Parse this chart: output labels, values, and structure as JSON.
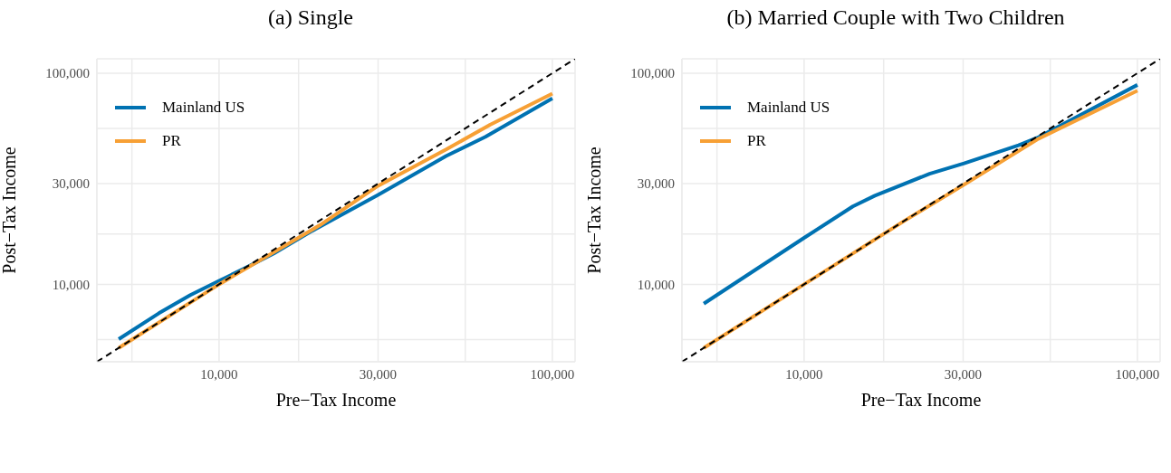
{
  "chart_data": [
    {
      "type": "line",
      "title": "(a) Single",
      "xlabel": "Pre−Tax Income",
      "ylabel": "Post−Tax Income",
      "log": "xy",
      "grid": true,
      "legend": "top left",
      "xlim": [
        4300,
        117000
      ],
      "ylim": [
        4300,
        117000
      ],
      "xticks": [
        {
          "value": 5477,
          "label": null
        },
        {
          "value": 10000,
          "label": "10,000"
        },
        {
          "value": 17321,
          "label": null
        },
        {
          "value": 30000,
          "label": "30,000"
        },
        {
          "value": 54772,
          "label": null
        },
        {
          "value": 100000,
          "label": "100,000"
        }
      ],
      "yticks": [
        {
          "value": 5477,
          "label": null
        },
        {
          "value": 10000,
          "label": "10,000"
        },
        {
          "value": 17321,
          "label": null
        },
        {
          "value": 30000,
          "label": "30,000"
        },
        {
          "value": 54772,
          "label": null
        },
        {
          "value": 100000,
          "label": "100,000"
        }
      ],
      "series": [
        {
          "name": "Mainland US",
          "color": "#0072b2",
          "x": [
            5000,
            6600,
            8200,
            10000,
            11800,
            14600,
            19000,
            30000,
            48000,
            63000,
            100000
          ],
          "values": [
            5500,
            7300,
            8900,
            10400,
            11800,
            14000,
            17900,
            26500,
            40500,
            50000,
            76000
          ]
        },
        {
          "name": "PR",
          "color": "#f7a035",
          "x": [
            5000,
            10000,
            20000,
            30000,
            48000,
            65000,
            100000
          ],
          "values": [
            5000,
            10000,
            19000,
            29300,
            43500,
            57000,
            80000
          ]
        },
        {
          "color": "#000000",
          "line_style": "dashed",
          "x": [
            4300,
            117000
          ],
          "values": [
            4300,
            117000
          ]
        }
      ]
    },
    {
      "type": "line",
      "title": "(b) Married Couple with Two Children",
      "xlabel": "Pre−Tax Income",
      "ylabel": "Post−Tax Income",
      "log": "xy",
      "grid": true,
      "legend": "top left",
      "xlim": [
        4300,
        117000
      ],
      "ylim": [
        4300,
        117000
      ],
      "xticks": [
        {
          "value": 5477,
          "label": null
        },
        {
          "value": 10000,
          "label": "10,000"
        },
        {
          "value": 17321,
          "label": null
        },
        {
          "value": 30000,
          "label": "30,000"
        },
        {
          "value": 54772,
          "label": null
        },
        {
          "value": 100000,
          "label": "100,000"
        }
      ],
      "yticks": [
        {
          "value": 5477,
          "label": null
        },
        {
          "value": 10000,
          "label": "10,000"
        },
        {
          "value": 17321,
          "label": null
        },
        {
          "value": 30000,
          "label": "30,000"
        },
        {
          "value": 54772,
          "label": null
        },
        {
          "value": 100000,
          "label": "100,000"
        }
      ],
      "series": [
        {
          "name": "Mainland US",
          "color": "#0072b2",
          "x": [
            5000,
            10000,
            14000,
            16300,
            23800,
            30200,
            44000,
            50000,
            100000
          ],
          "values": [
            8100,
            16600,
            23400,
            26300,
            33400,
            37400,
            45600,
            49400,
            88000
          ]
        },
        {
          "name": "PR",
          "color": "#f7a035",
          "x": [
            5000,
            10000,
            20000,
            30000,
            50000,
            100000
          ],
          "values": [
            5000,
            10000,
            20000,
            29500,
            48500,
            82600
          ]
        },
        {
          "color": "#000000",
          "line_style": "dashed",
          "x": [
            4300,
            117000
          ],
          "values": [
            4300,
            117000
          ]
        }
      ]
    }
  ]
}
